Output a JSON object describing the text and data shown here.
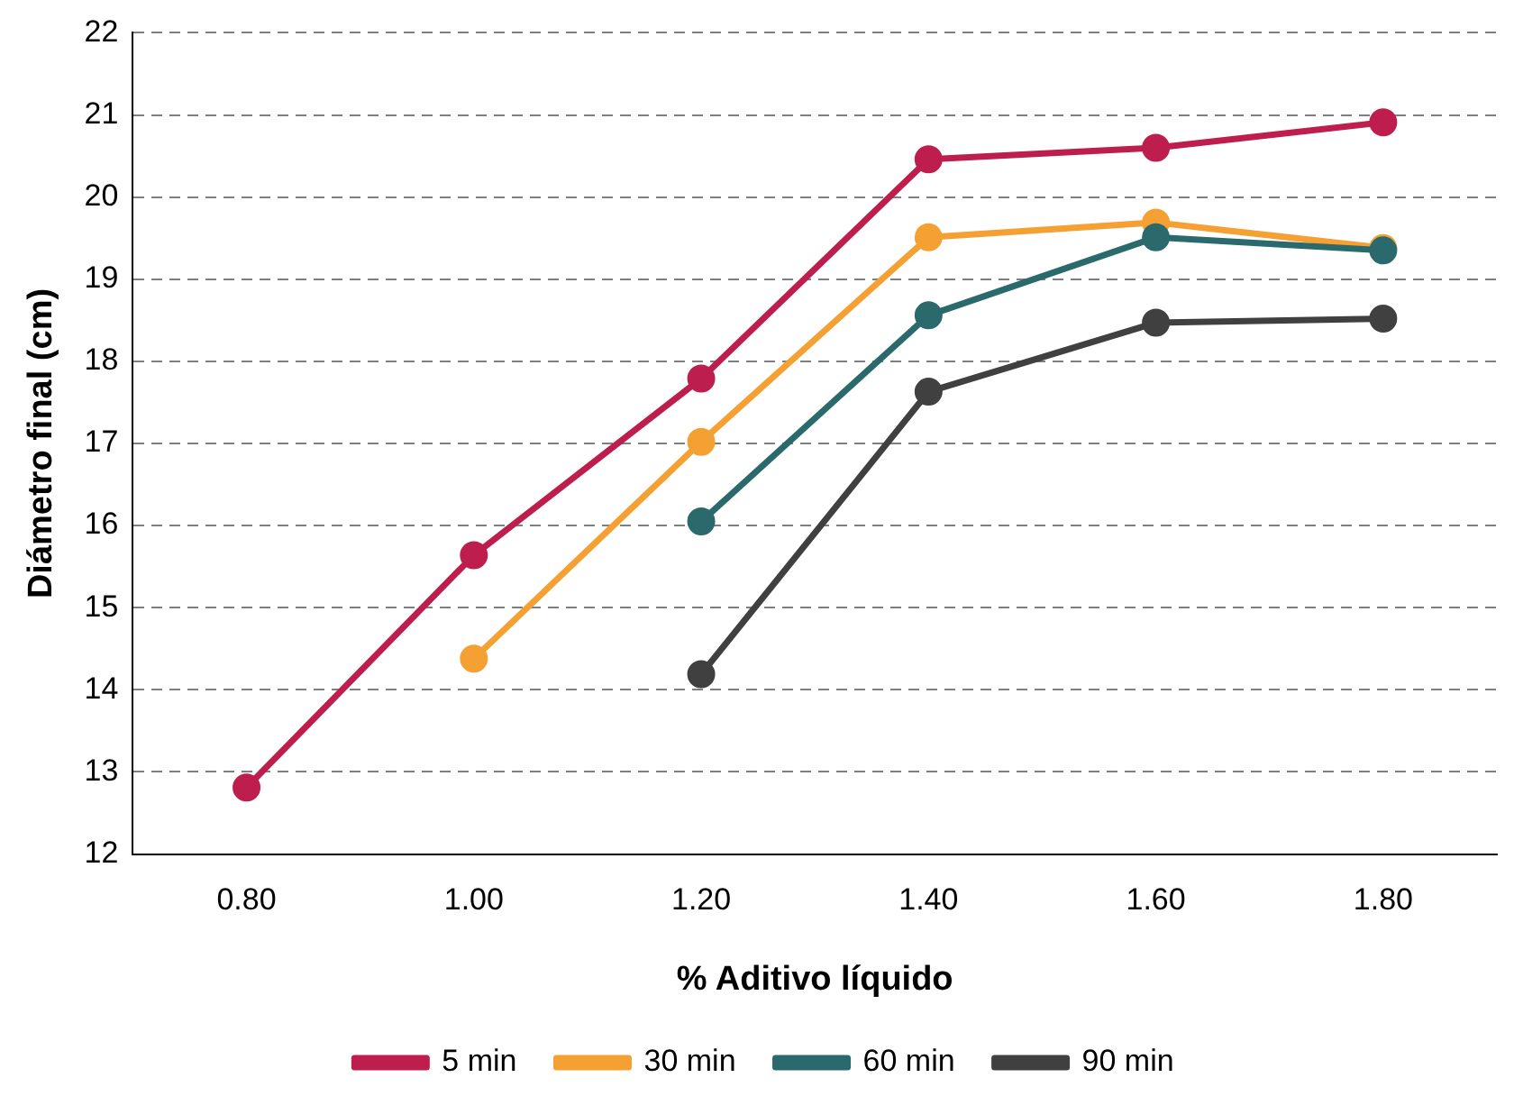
{
  "chart_data": {
    "type": "line",
    "xlabel": "% Aditivo líquido",
    "ylabel": "Diámetro final (cm)",
    "categories": [
      "0.80",
      "1.00",
      "1.20",
      "1.40",
      "1.60",
      "1.80"
    ],
    "series": [
      {
        "name": "5 min",
        "color": "#be1e4e",
        "values": [
          12.81,
          15.64,
          17.79,
          20.46,
          20.6,
          20.91
        ]
      },
      {
        "name": "30 min",
        "color": "#f5a033",
        "values": [
          null,
          14.38,
          17.02,
          19.51,
          19.69,
          19.38
        ]
      },
      {
        "name": "60 min",
        "color": "#2b6a6c",
        "values": [
          null,
          null,
          16.05,
          18.56,
          19.51,
          19.35
        ]
      },
      {
        "name": "90 min",
        "color": "#404040",
        "values": [
          null,
          null,
          14.19,
          17.63,
          18.47,
          18.52
        ]
      }
    ],
    "ylim": [
      12,
      22
    ],
    "yticks": [
      12,
      13,
      14,
      15,
      16,
      17,
      18,
      19,
      20,
      21,
      22
    ],
    "grid": "y",
    "legend": "bottom",
    "marker": "circle",
    "line_style": "solid"
  }
}
